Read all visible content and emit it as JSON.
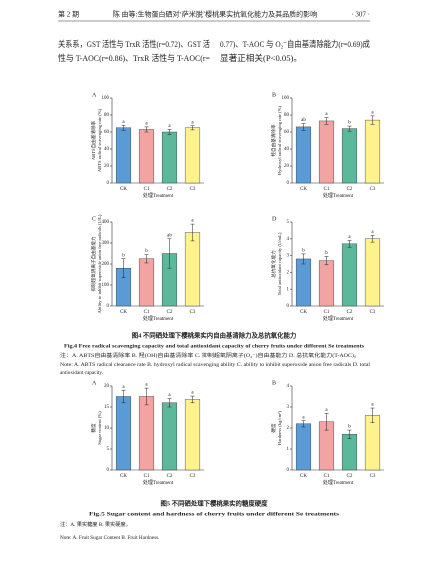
{
  "header": {
    "issue": "第 2 期",
    "title": "陈 由等:生物蛋白硒对‘萨米脱’樱桃果实抗氧化能力及其品质的影响",
    "page": "· 307 ·"
  },
  "text": {
    "left": [
      "关系系，GST 活性与 TrxR 活性(r=0.72)、GST 活",
      "性与 T-AOC(r=0.86)、TrxR 活性与 T-AOC(r="
    ],
    "right": [
      "0.77)、T-AOC 与 O₂⁻自由基清除能力(r=0.69)成",
      "显著正相关(P<0.05)。"
    ]
  },
  "chart_data": [
    {
      "type": "bar",
      "panel": "A",
      "y_label_cn": "ABTS自由基清除率",
      "y_label_en": "ABTS radical scavenging rate (%)",
      "x_label": "处理Treatment",
      "categories": [
        "CK",
        "C1",
        "C2",
        "C3"
      ],
      "values": [
        65,
        63,
        60,
        65
      ],
      "errors": [
        3,
        3,
        3,
        2.5
      ],
      "annotations": [
        "a",
        "a",
        "a",
        "a"
      ],
      "colors": [
        "#5b9bd5",
        "#f4a3a3",
        "#5cb89a",
        "#fdf28c"
      ],
      "ylim": [
        0,
        100
      ],
      "yticks": [
        0,
        20,
        40,
        60,
        80,
        100
      ]
    },
    {
      "type": "bar",
      "panel": "B",
      "y_label_cn": "羟自由基清除率",
      "y_label_en": "Hydroxyl radical scavenging rate (%)",
      "x_label": "处理Treatment",
      "categories": [
        "CK",
        "C1",
        "C2",
        "C3"
      ],
      "values": [
        66,
        73,
        64,
        74
      ],
      "errors": [
        4,
        4,
        3,
        5
      ],
      "annotations": [
        "ab",
        "a",
        "b",
        "a"
      ],
      "colors": [
        "#5b9bd5",
        "#f4a3a3",
        "#5cb89a",
        "#fdf28c"
      ],
      "ylim": [
        0,
        100
      ],
      "yticks": [
        0,
        20,
        40,
        60,
        80,
        100
      ]
    },
    {
      "type": "bar",
      "panel": "C",
      "y_label_cn": "抑制超氧阴离子自由基能力",
      "y_label_en": "Ability to inhibit superoxide anion free radicals (U/L)",
      "x_label": "处理Treatment",
      "categories": [
        "CK",
        "C1",
        "C2",
        "C3"
      ],
      "values": [
        180,
        225,
        250,
        350
      ],
      "errors": [
        45,
        20,
        70,
        40
      ],
      "annotations": [
        "b",
        "b",
        "ab",
        "a"
      ],
      "colors": [
        "#5b9bd5",
        "#f4a3a3",
        "#5cb89a",
        "#fdf28c"
      ],
      "ylim": [
        0,
        400
      ],
      "yticks": [
        0,
        100,
        200,
        300,
        400
      ]
    },
    {
      "type": "bar",
      "panel": "D",
      "y_label_cn": "总抗氧化能力",
      "y_label_en": "Total antioxidant capacity (U/mL)",
      "x_label": "处理Treatment",
      "categories": [
        "CK",
        "C1",
        "C2",
        "C3"
      ],
      "values": [
        2.8,
        2.7,
        3.7,
        4.0
      ],
      "errors": [
        0.3,
        0.25,
        0.2,
        0.2
      ],
      "annotations": [
        "b",
        "b",
        "a",
        "a"
      ],
      "colors": [
        "#5b9bd5",
        "#f4a3a3",
        "#5cb89a",
        "#fdf28c"
      ],
      "ylim": [
        0,
        5
      ],
      "yticks": [
        0,
        1,
        2,
        3,
        4,
        5
      ]
    },
    {
      "type": "bar",
      "panel": "A",
      "y_label_cn": "糖度",
      "y_label_en": "Sugar content (%)",
      "x_label": "处理Treatment",
      "categories": [
        "CK",
        "C1",
        "C2",
        "C3"
      ],
      "values": [
        17.5,
        17.5,
        16,
        16.8
      ],
      "errors": [
        1.5,
        2,
        1,
        0.8
      ],
      "annotations": [
        "a",
        "a",
        "a",
        "a"
      ],
      "colors": [
        "#5b9bd5",
        "#f4a3a3",
        "#5cb89a",
        "#fdf28c"
      ],
      "ylim": [
        0,
        20
      ],
      "yticks": [
        0,
        5,
        10,
        15,
        20
      ]
    },
    {
      "type": "bar",
      "panel": "B",
      "y_label_cn": "硬度",
      "y_label_en": "Hardness (kg/cm²)",
      "x_label": "处理Treatment",
      "categories": [
        "CK",
        "C1",
        "C2",
        "C3"
      ],
      "values": [
        2.2,
        2.3,
        1.7,
        2.6
      ],
      "errors": [
        0.15,
        0.4,
        0.2,
        0.35
      ],
      "annotations": [
        "a",
        "a",
        "b",
        "a"
      ],
      "colors": [
        "#5b9bd5",
        "#f4a3a3",
        "#5cb89a",
        "#fdf28c"
      ],
      "ylim": [
        0,
        4
      ],
      "yticks": [
        0,
        1,
        2,
        3,
        4
      ]
    }
  ],
  "figures": [
    {
      "caption_cn": "图4 不同硒处理下樱桃果实内自由基清除力及总抗氧化能力",
      "caption_en": "Fig.4 Free radical scavenging capacity and total antioxidant capacity of cherry fruits under different Se treatments",
      "note_cn": "注：A. ABTS自由基清除率 B. 羟(OH)自由基清除率 C. 抑制超氧阴离子(O₂⁻)自由基能力 D. 总抗氧化能力(T-AOC)。",
      "note_en": [
        "Note: A. ABTS radical clearance rate B. hydroxyl radical scavenging ability C. ability to inhibit superoxide anion free radicals D. total",
        "antioxidant capacity."
      ]
    },
    {
      "caption_cn": "图5 不同硒处理下樱桃果实的糖度硬度",
      "caption_en": "Fig.5 Sugar content and hardness of cherry fruits under different Se treatments",
      "note_cn": "注：A. 果实糖度 B. 果实硬度。",
      "note_en": [
        "Note: A. Fruit Sugar Content B. Fruit Hardness."
      ]
    }
  ]
}
